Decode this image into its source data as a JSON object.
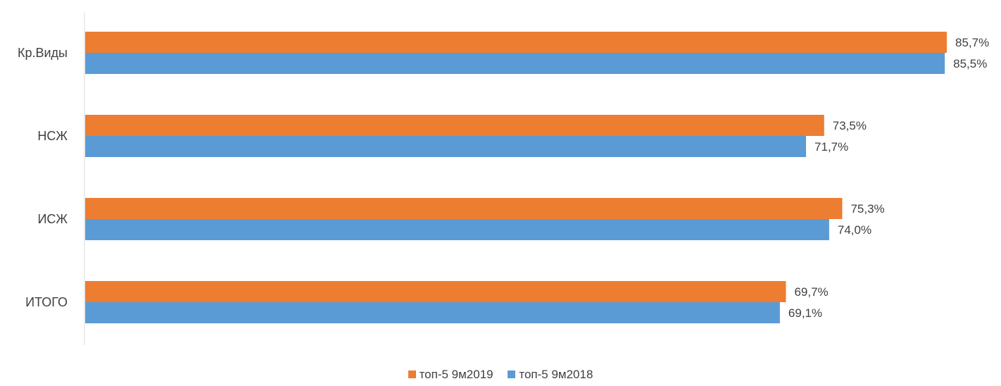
{
  "chart_data": {
    "type": "bar",
    "orientation": "horizontal",
    "categories": [
      "Кр.Виды",
      "НСЖ",
      "ИСЖ",
      "ИТОГО"
    ],
    "series": [
      {
        "name": "топ-5 9м2019",
        "color": "#ED7D31",
        "values": [
          85.7,
          73.5,
          75.3,
          69.7
        ],
        "labels": [
          "85,7%",
          "73,5%",
          "75,3%",
          "69,7%"
        ]
      },
      {
        "name": "топ-5 9м2018",
        "color": "#5B9BD5",
        "values": [
          85.5,
          71.7,
          74.0,
          69.1
        ],
        "labels": [
          "85,5%",
          "71,7%",
          "74,0%",
          "69,1%"
        ]
      }
    ],
    "xlim": [
      0,
      100
    ],
    "grid": false,
    "legend_position": "bottom"
  }
}
